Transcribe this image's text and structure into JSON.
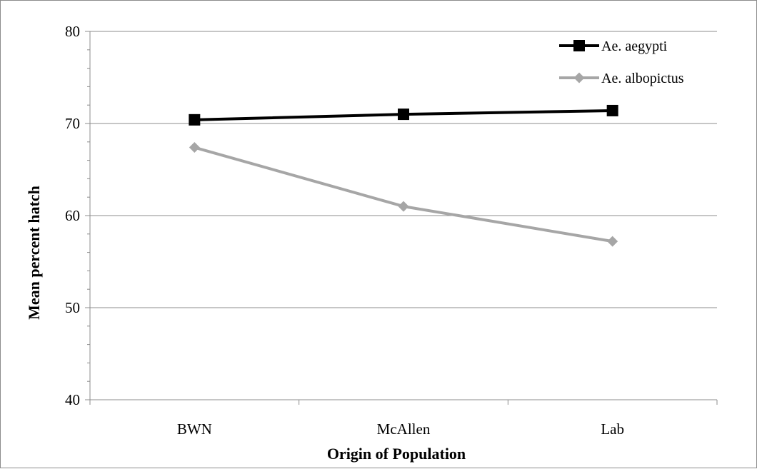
{
  "chart_data": {
    "type": "line",
    "xlabel": "Origin of Population",
    "ylabel": "Mean percent hatch",
    "categories": [
      "BWN",
      "McAllen",
      "Lab"
    ],
    "ylim": [
      40,
      80
    ],
    "yticks": [
      40,
      50,
      60,
      70,
      80
    ],
    "grid": true,
    "legend_position": "top-right",
    "series": [
      {
        "name": "Ae. aegypti",
        "values": [
          70.4,
          71.0,
          71.4
        ],
        "color": "#000000",
        "marker": "square"
      },
      {
        "name": "Ae. albopictus",
        "values": [
          67.4,
          61.0,
          57.2
        ],
        "color": "#a6a6a6",
        "marker": "diamond"
      }
    ]
  }
}
